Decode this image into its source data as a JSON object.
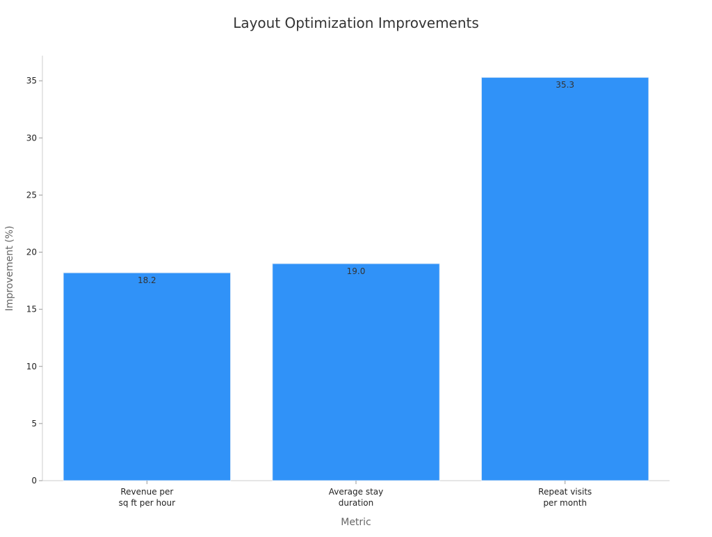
{
  "chart_data": {
    "type": "bar",
    "title": "Layout Optimization Improvements",
    "xlabel": "Metric",
    "ylabel": "Improvement (%)",
    "categories": [
      [
        "Revenue per",
        "sq ft per hour"
      ],
      [
        "Average stay",
        "duration"
      ],
      [
        "Repeat visits",
        "per month"
      ]
    ],
    "values": [
      18.2,
      19.0,
      35.3
    ],
    "value_labels": [
      "18.2",
      "19.0",
      "35.3"
    ],
    "ylim": [
      0,
      37.2
    ],
    "yticks": [
      0,
      5,
      10,
      15,
      20,
      25,
      30,
      35
    ],
    "ytick_labels": [
      "0",
      "5",
      "10",
      "15",
      "20",
      "25",
      "30",
      "35"
    ],
    "grid": false,
    "legend": "none",
    "colors": {
      "bar": "#3092f8",
      "bar_edge": "#e6eef8",
      "axis": "#cccccc",
      "title": "#333333",
      "label": "#666666",
      "tick_text": "#222222",
      "value_text": "#333333"
    }
  }
}
